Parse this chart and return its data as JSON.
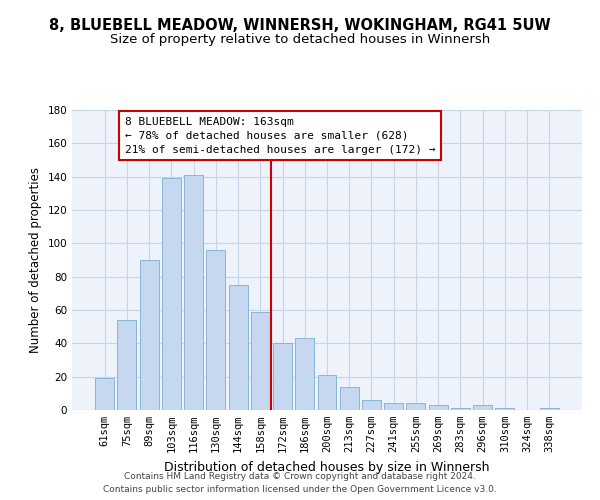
{
  "title1": "8, BLUEBELL MEADOW, WINNERSH, WOKINGHAM, RG41 5UW",
  "title2": "Size of property relative to detached houses in Winnersh",
  "xlabel": "Distribution of detached houses by size in Winnersh",
  "ylabel": "Number of detached properties",
  "categories": [
    "61sqm",
    "75sqm",
    "89sqm",
    "103sqm",
    "116sqm",
    "130sqm",
    "144sqm",
    "158sqm",
    "172sqm",
    "186sqm",
    "200sqm",
    "213sqm",
    "227sqm",
    "241sqm",
    "255sqm",
    "269sqm",
    "283sqm",
    "296sqm",
    "310sqm",
    "324sqm",
    "338sqm"
  ],
  "values": [
    19,
    54,
    90,
    139,
    141,
    96,
    75,
    59,
    40,
    43,
    21,
    14,
    6,
    4,
    4,
    3,
    1,
    3,
    1,
    0,
    1
  ],
  "bar_color": "#c5d8f0",
  "bar_edge_color": "#7aafd4",
  "vline_x_idx": 7,
  "vline_color": "#cc0000",
  "annotation_line1": "8 BLUEBELL MEADOW: 163sqm",
  "annotation_line2": "← 78% of detached houses are smaller (628)",
  "annotation_line3": "21% of semi-detached houses are larger (172) →",
  "annotation_box_color": "#ffffff",
  "annotation_box_edge_color": "#cc0000",
  "ylim": [
    0,
    180
  ],
  "yticks": [
    0,
    20,
    40,
    60,
    80,
    100,
    120,
    140,
    160,
    180
  ],
  "bg_color": "#ffffff",
  "plot_bg_color": "#edf2fb",
  "grid_color": "#c8d4e8",
  "footer1": "Contains HM Land Registry data © Crown copyright and database right 2024.",
  "footer2": "Contains public sector information licensed under the Open Government Licence v3.0.",
  "title1_fontsize": 10.5,
  "title2_fontsize": 9.5,
  "ylabel_fontsize": 8.5,
  "xlabel_fontsize": 9,
  "tick_fontsize": 7.5,
  "annotation_fontsize": 8,
  "footer_fontsize": 6.5
}
